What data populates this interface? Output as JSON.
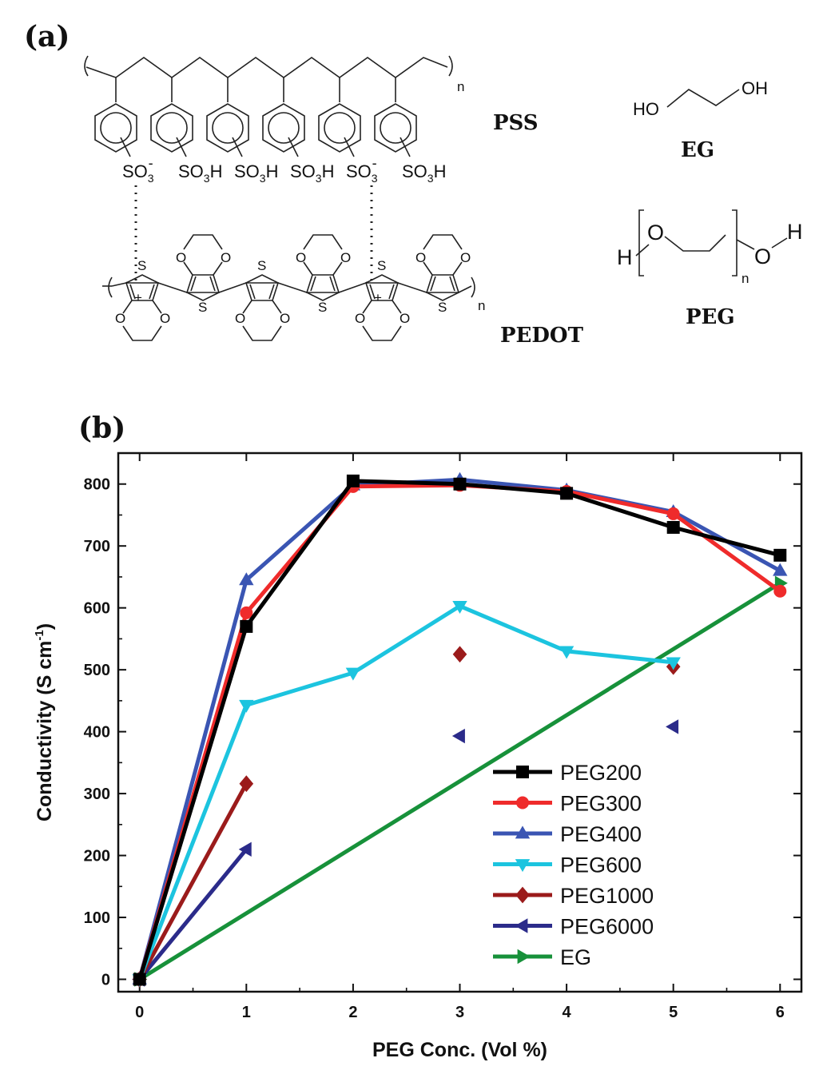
{
  "panel_a": {
    "label": "(a)",
    "names": {
      "pss": "PSS",
      "pedot": "PEDOT",
      "eg": "EG",
      "peg": "PEG"
    },
    "atoms": {
      "so3_minus": "SO",
      "so3h": "SO",
      "sub3": "3",
      "sup_minus": "-",
      "h": "H",
      "n": "n",
      "s": "S",
      "o": "O",
      "ho": "HO",
      "oh": "OH",
      "plus": "+",
      "dot": "·"
    }
  },
  "panel_b": {
    "label": "(b)"
  },
  "chart_data": {
    "type": "line",
    "xlabel": "PEG Conc. (Vol %)",
    "ylabel": "Conductivity (S cm",
    "ylabel_sup": "-1",
    "ylabel_close": ")",
    "xlim": [
      -0.2,
      6.2
    ],
    "ylim": [
      -20,
      850
    ],
    "xticks": [
      0,
      1,
      2,
      3,
      4,
      5,
      6
    ],
    "yticks": [
      0,
      100,
      200,
      300,
      400,
      500,
      600,
      700,
      800
    ],
    "legend_position": "bottom-right",
    "series": [
      {
        "name": "PEG200",
        "color": "#000000",
        "marker": "square",
        "connected": true,
        "x": [
          0,
          1,
          2,
          3,
          4,
          5,
          6
        ],
        "y": [
          0,
          570,
          805,
          800,
          785,
          730,
          685
        ]
      },
      {
        "name": "PEG300",
        "color": "#ef2b2b",
        "marker": "circle",
        "connected": true,
        "x": [
          0,
          1,
          2,
          3,
          4,
          5,
          6
        ],
        "y": [
          0,
          592,
          796,
          798,
          788,
          752,
          627
        ]
      },
      {
        "name": "PEG400",
        "color": "#3a55b3",
        "marker": "triangle-up",
        "connected": true,
        "x": [
          0,
          1,
          2,
          3,
          4,
          5,
          6
        ],
        "y": [
          0,
          645,
          798,
          807,
          790,
          755,
          660
        ]
      },
      {
        "name": "PEG600",
        "color": "#1cc4df",
        "marker": "triangle-down",
        "connected": true,
        "x": [
          0,
          1,
          2,
          3,
          4,
          5
        ],
        "y": [
          0,
          443,
          495,
          603,
          530,
          512
        ]
      },
      {
        "name": "PEG1000",
        "color": "#9b1b1b",
        "marker": "diamond",
        "connected": true,
        "x": [
          0,
          1
        ],
        "y": [
          0,
          316
        ]
      },
      {
        "name": "PEG1000",
        "color": "#9b1b1b",
        "marker": "diamond",
        "connected": false,
        "x": [
          3,
          5
        ],
        "y": [
          525,
          505
        ]
      },
      {
        "name": "PEG6000",
        "color": "#2b2b8a",
        "marker": "triangle-left",
        "connected": true,
        "x": [
          0,
          1
        ],
        "y": [
          0,
          210
        ]
      },
      {
        "name": "PEG6000",
        "color": "#2b2b8a",
        "marker": "triangle-left",
        "connected": false,
        "x": [
          3,
          5
        ],
        "y": [
          393,
          408
        ]
      },
      {
        "name": "EG",
        "color": "#17913a",
        "marker": "triangle-right",
        "connected": true,
        "x": [
          0,
          6
        ],
        "y": [
          0,
          640
        ]
      }
    ],
    "legend": [
      {
        "name": "PEG200",
        "color": "#000000",
        "marker": "square"
      },
      {
        "name": "PEG300",
        "color": "#ef2b2b",
        "marker": "circle"
      },
      {
        "name": "PEG400",
        "color": "#3a55b3",
        "marker": "triangle-up"
      },
      {
        "name": "PEG600",
        "color": "#1cc4df",
        "marker": "triangle-down"
      },
      {
        "name": "PEG1000",
        "color": "#9b1b1b",
        "marker": "diamond"
      },
      {
        "name": "PEG6000",
        "color": "#2b2b8a",
        "marker": "triangle-left"
      },
      {
        "name": "EG",
        "color": "#17913a",
        "marker": "triangle-right"
      }
    ]
  }
}
